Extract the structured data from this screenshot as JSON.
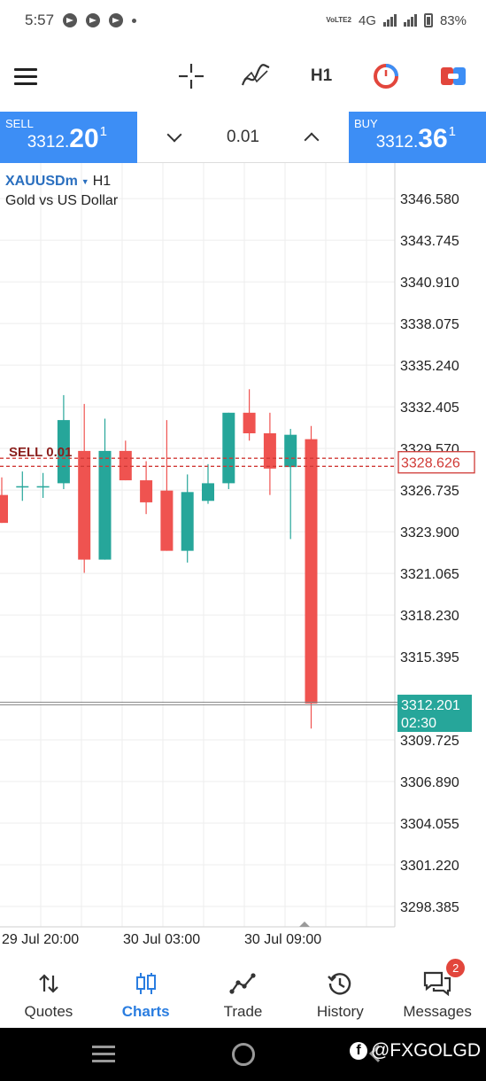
{
  "status_bar": {
    "time": "5:57",
    "network": "4G",
    "volte": "VoLTE2",
    "battery": "83%"
  },
  "toolbar": {
    "timeframe": "H1",
    "icons": [
      "menu-icon",
      "crosshair-icon",
      "indicator-icon",
      "clock-icon",
      "one-click-trade-icon"
    ]
  },
  "trade_panel": {
    "sell_label": "SELL",
    "sell_price_prefix": "3312.",
    "sell_price_big": "20",
    "sell_price_sup": "1",
    "buy_label": "BUY",
    "buy_price_prefix": "3312.",
    "buy_price_big": "36",
    "buy_price_sup": "1",
    "lot_size": "0.01"
  },
  "chart": {
    "symbol": "XAUUSDm",
    "timeframe": "H1",
    "description": "Gold vs US Dollar",
    "order_line_label": "SELL 0.01",
    "order_price_label": "3328.626",
    "current_price_label": "3312.201",
    "countdown_label": "02:30",
    "colors": {
      "bull": "#26a69a",
      "bear": "#ef5350",
      "order": "#d03a36",
      "grid": "#eeeeee"
    }
  },
  "chart_data": {
    "type": "candlestick",
    "y_ticks": [
      "3346.580",
      "3343.745",
      "3340.910",
      "3338.075",
      "3335.240",
      "3332.405",
      "3329.570",
      "3326.735",
      "3323.900",
      "3321.065",
      "3318.230",
      "3315.395",
      "3309.725",
      "3306.890",
      "3304.055",
      "3301.220",
      "3298.385"
    ],
    "x_ticks": [
      "29 Jul 20:00",
      "30 Jul 03:00",
      "30 Jul 09:00"
    ],
    "ylim": [
      3297.0,
      3349.0
    ],
    "order_price": 3328.626,
    "order_lines": [
      3328.9,
      3328.35
    ],
    "current_price": 3312.201,
    "candles": [
      {
        "o": 3326.4,
        "h": 3327.6,
        "l": 3324.5,
        "c": 3324.5
      },
      {
        "o": 3327.0,
        "h": 3328.0,
        "l": 3326.0,
        "c": 3327.0
      },
      {
        "o": 3327.0,
        "h": 3327.9,
        "l": 3326.2,
        "c": 3327.0
      },
      {
        "o": 3327.2,
        "h": 3333.2,
        "l": 3326.8,
        "c": 3331.5
      },
      {
        "o": 3329.4,
        "h": 3332.6,
        "l": 3321.1,
        "c": 3322.0
      },
      {
        "o": 3322.0,
        "h": 3331.6,
        "l": 3322.0,
        "c": 3329.4
      },
      {
        "o": 3329.4,
        "h": 3330.1,
        "l": 3327.4,
        "c": 3327.4
      },
      {
        "o": 3327.4,
        "h": 3328.7,
        "l": 3325.1,
        "c": 3325.9
      },
      {
        "o": 3326.7,
        "h": 3331.5,
        "l": 3322.6,
        "c": 3322.6
      },
      {
        "o": 3322.6,
        "h": 3327.8,
        "l": 3321.8,
        "c": 3326.6
      },
      {
        "o": 3326.0,
        "h": 3328.5,
        "l": 3325.8,
        "c": 3327.2
      },
      {
        "o": 3327.2,
        "h": 3332.0,
        "l": 3326.8,
        "c": 3332.0
      },
      {
        "o": 3332.0,
        "h": 3333.6,
        "l": 3330.1,
        "c": 3330.6
      },
      {
        "o": 3330.6,
        "h": 3332.0,
        "l": 3326.4,
        "c": 3328.2
      },
      {
        "o": 3328.3,
        "h": 3330.9,
        "l": 3323.4,
        "c": 3330.5
      },
      {
        "o": 3330.2,
        "h": 3331.1,
        "l": 3310.5,
        "c": 3312.2
      }
    ]
  },
  "bottom_nav": {
    "items": [
      {
        "label": "Quotes",
        "icon": "sort-arrows-icon"
      },
      {
        "label": "Charts",
        "icon": "candles-icon"
      },
      {
        "label": "Trade",
        "icon": "trade-line-icon"
      },
      {
        "label": "History",
        "icon": "history-icon"
      },
      {
        "label": "Messages",
        "icon": "messages-icon"
      }
    ],
    "messages_badge": "2"
  },
  "watermark": "@FXGOLGD"
}
